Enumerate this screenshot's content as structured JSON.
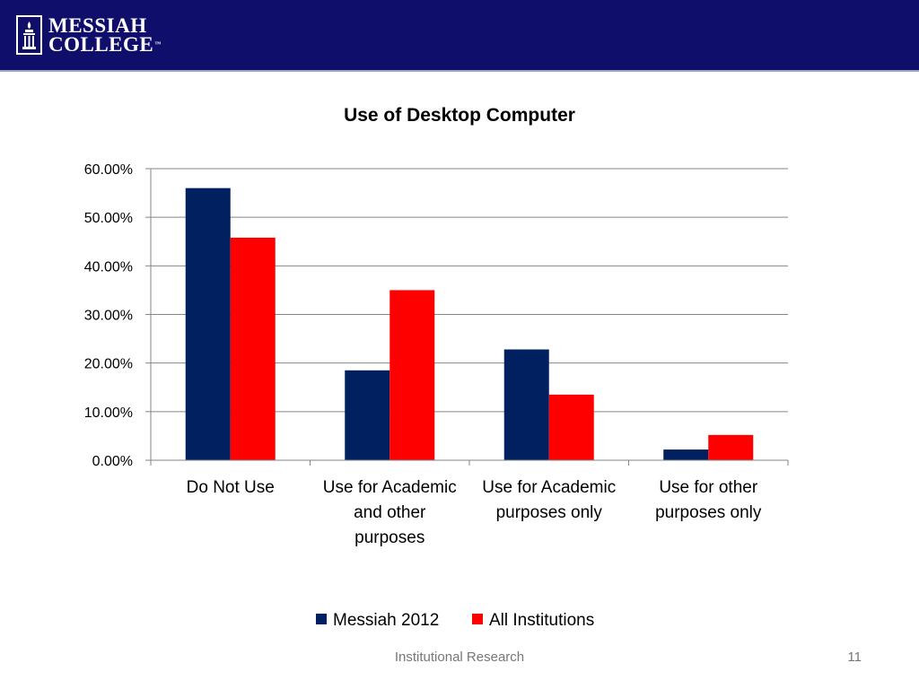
{
  "brand": {
    "name_line1": "MESSIAH",
    "name_line2": "COLLEGE",
    "trademark": "™",
    "header_color": "#0f0f6b"
  },
  "chart_data": {
    "type": "bar",
    "title": "Use of Desktop Computer",
    "categories": [
      [
        "Do Not Use"
      ],
      [
        "Use for Academic",
        "and other",
        "purposes"
      ],
      [
        "Use for Academic",
        "purposes only"
      ],
      [
        "Use for other",
        "purposes only"
      ]
    ],
    "series": [
      {
        "name": "Messiah 2012",
        "color": "#002060",
        "values": [
          0.56,
          0.185,
          0.228,
          0.022
        ]
      },
      {
        "name": "All Institutions",
        "color": "#ff0000",
        "values": [
          0.458,
          0.35,
          0.135,
          0.052
        ]
      }
    ],
    "ylim": [
      0,
      0.6
    ],
    "yticks": [
      "0.00%",
      "10.00%",
      "20.00%",
      "30.00%",
      "40.00%",
      "50.00%",
      "60.00%"
    ],
    "grid": true,
    "legend_position": "bottom"
  },
  "footer": {
    "text": "Institutional Research",
    "page_number": "11"
  }
}
